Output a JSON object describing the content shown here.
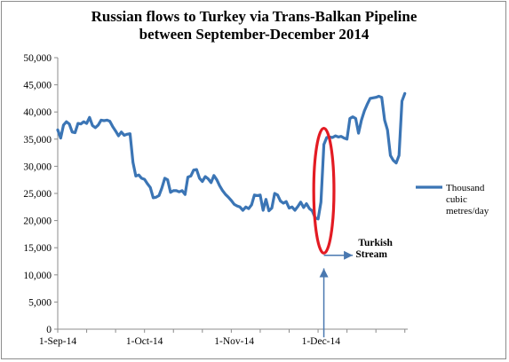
{
  "chart_data": {
    "type": "line",
    "title": "Russian flows to Turkey via Trans-Balkan Pipeline between September-December 2014",
    "title_lines": [
      "Russian flows to Turkey via Trans-Balkan Pipeline",
      "between September-December 2014"
    ],
    "xlabel": "",
    "ylabel": "",
    "ylim": [
      0,
      50000
    ],
    "y_ticks": [
      0,
      5000,
      10000,
      15000,
      20000,
      25000,
      30000,
      35000,
      40000,
      45000,
      50000
    ],
    "y_tick_labels": [
      "0",
      "5,000",
      "10,000",
      "15,000",
      "20,000",
      "25,000",
      "30,000",
      "35,000",
      "40,000",
      "45,000",
      "50,000"
    ],
    "x_axis": {
      "type": "date",
      "start": "2014-09-01",
      "end": "2014-12-31"
    },
    "x_ticks": [
      "2014-09-01",
      "2014-10-01",
      "2014-11-01",
      "2014-12-01"
    ],
    "x_tick_labels": [
      "1-Sep-14",
      "1-Oct-14",
      "1-Nov-14",
      "1-Dec-14"
    ],
    "grid": false,
    "legend": {
      "position": "right",
      "entries": [
        "Thousand cubic metres/day"
      ],
      "lines": [
        "Thousand",
        "cubic",
        "metres/day"
      ]
    },
    "series": [
      {
        "name": "Thousand cubic metres/day",
        "color": "#3b75b5",
        "x": [
          "2014-09-01",
          "2014-09-02",
          "2014-09-03",
          "2014-09-04",
          "2014-09-05",
          "2014-09-06",
          "2014-09-07",
          "2014-09-08",
          "2014-09-09",
          "2014-09-10",
          "2014-09-11",
          "2014-09-12",
          "2014-09-13",
          "2014-09-14",
          "2014-09-15",
          "2014-09-16",
          "2014-09-17",
          "2014-09-18",
          "2014-09-19",
          "2014-09-20",
          "2014-09-21",
          "2014-09-22",
          "2014-09-23",
          "2014-09-24",
          "2014-09-25",
          "2014-09-26",
          "2014-09-27",
          "2014-09-28",
          "2014-09-29",
          "2014-09-30",
          "2014-10-01",
          "2014-10-02",
          "2014-10-03",
          "2014-10-04",
          "2014-10-05",
          "2014-10-06",
          "2014-10-07",
          "2014-10-08",
          "2014-10-09",
          "2014-10-10",
          "2014-10-11",
          "2014-10-12",
          "2014-10-13",
          "2014-10-14",
          "2014-10-15",
          "2014-10-16",
          "2014-10-17",
          "2014-10-18",
          "2014-10-19",
          "2014-10-20",
          "2014-10-21",
          "2014-10-22",
          "2014-10-23",
          "2014-10-24",
          "2014-10-25",
          "2014-10-26",
          "2014-10-27",
          "2014-10-28",
          "2014-10-29",
          "2014-10-30",
          "2014-10-31",
          "2014-11-01",
          "2014-11-02",
          "2014-11-03",
          "2014-11-04",
          "2014-11-05",
          "2014-11-06",
          "2014-11-07",
          "2014-11-08",
          "2014-11-09",
          "2014-11-10",
          "2014-11-11",
          "2014-11-12",
          "2014-11-13",
          "2014-11-14",
          "2014-11-15",
          "2014-11-16",
          "2014-11-17",
          "2014-11-18",
          "2014-11-19",
          "2014-11-20",
          "2014-11-21",
          "2014-11-22",
          "2014-11-23",
          "2014-11-24",
          "2014-11-25",
          "2014-11-26",
          "2014-11-27",
          "2014-11-28",
          "2014-11-29",
          "2014-11-30",
          "2014-12-01",
          "2014-12-02",
          "2014-12-03",
          "2014-12-04",
          "2014-12-05",
          "2014-12-06",
          "2014-12-07",
          "2014-12-08",
          "2014-12-09",
          "2014-12-10",
          "2014-12-11",
          "2014-12-12",
          "2014-12-13",
          "2014-12-14",
          "2014-12-15",
          "2014-12-16",
          "2014-12-17",
          "2014-12-18",
          "2014-12-19",
          "2014-12-20",
          "2014-12-21",
          "2014-12-22",
          "2014-12-23",
          "2014-12-24",
          "2014-12-25",
          "2014-12-26",
          "2014-12-27",
          "2014-12-28",
          "2014-12-29",
          "2014-12-30"
        ],
        "values": [
          36700,
          35200,
          37600,
          38200,
          37800,
          36300,
          36200,
          37900,
          37800,
          38200,
          37900,
          39000,
          37500,
          37100,
          37600,
          38500,
          38400,
          38500,
          38300,
          37300,
          36500,
          35600,
          36300,
          35700,
          35900,
          36000,
          30700,
          28200,
          28400,
          27800,
          27600,
          26800,
          26100,
          24200,
          24300,
          24600,
          26000,
          27800,
          27500,
          25200,
          25500,
          25500,
          25300,
          25500,
          24800,
          28000,
          28200,
          29300,
          29400,
          27800,
          27200,
          28100,
          27700,
          27000,
          28300,
          27500,
          26400,
          25500,
          24800,
          24300,
          23700,
          23000,
          22700,
          22500,
          21900,
          22500,
          22200,
          22900,
          24700,
          24600,
          24700,
          21900,
          23900,
          21800,
          22300,
          25000,
          24700,
          23600,
          23200,
          23500,
          22300,
          22500,
          21900,
          22600,
          23400,
          22400,
          23100,
          22200,
          21800,
          20500,
          20300,
          23400,
          34000,
          35300,
          35400,
          35300,
          35600,
          35400,
          35500,
          35200,
          35000,
          38800,
          39100,
          38800,
          36100,
          38500,
          40200,
          41400,
          42500,
          42600,
          42700,
          42900,
          42700,
          38500,
          36700,
          32000,
          31100,
          30600,
          32000,
          42000,
          43400
        ]
      }
    ],
    "annotations": [
      {
        "type": "ellipse",
        "color": "#e31b23",
        "center_x": "2014-12-02",
        "center_y": 25500,
        "rx_days": 3.5,
        "ry_value": 11500
      },
      {
        "type": "text",
        "lines": [
          "Turkish",
          "Stream"
        ],
        "text": "Turkish Stream",
        "x": "2014-12-13",
        "y": 15400
      },
      {
        "type": "arrow",
        "color": "#4a78b0",
        "from": [
          "2014-12-02",
          13600
        ],
        "to": [
          "2014-12-12",
          13600
        ],
        "direction": "right"
      },
      {
        "type": "arrow",
        "color": "#4a78b0",
        "from": [
          "2014-12-02",
          -1500
        ],
        "to": [
          "2014-12-02",
          11200
        ],
        "direction": "up"
      }
    ]
  }
}
